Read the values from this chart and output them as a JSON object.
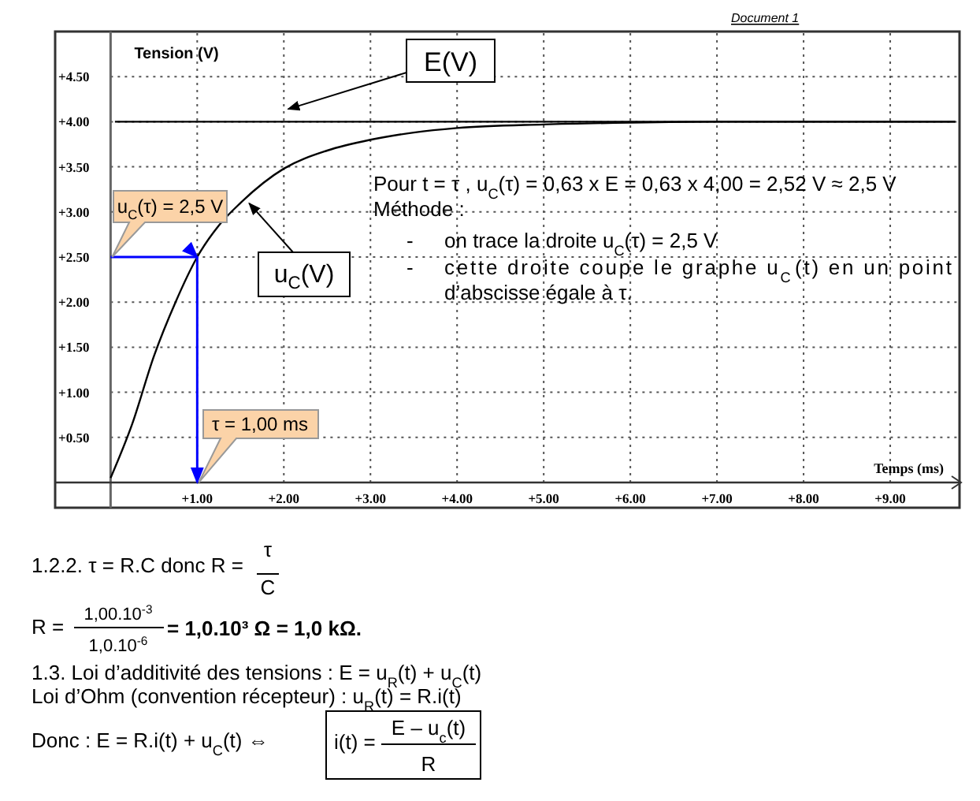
{
  "chart_data": {
    "type": "line",
    "xlabel": "Temps (ms)",
    "ylabel": "Tension (V)",
    "xlim": [
      -0.64,
      9.8
    ],
    "ylim": [
      0,
      5
    ],
    "xticks": [
      {
        "value": 1,
        "label": "+1.00"
      },
      {
        "value": 2,
        "label": "+2.00"
      },
      {
        "value": 3,
        "label": "+3.00"
      },
      {
        "value": 4,
        "label": "+4.00"
      },
      {
        "value": 5,
        "label": "+5.00"
      },
      {
        "value": 6,
        "label": "+6.00"
      },
      {
        "value": 7,
        "label": "+7.00"
      },
      {
        "value": 8,
        "label": "+8.00"
      },
      {
        "value": 9,
        "label": "+9.00"
      }
    ],
    "yticks": [
      {
        "value": 0.5,
        "label": "+0.50"
      },
      {
        "value": 1,
        "label": "+1.00"
      },
      {
        "value": 1.5,
        "label": "+1.50"
      },
      {
        "value": 2,
        "label": "+2.00"
      },
      {
        "value": 2.5,
        "label": "+2.50"
      },
      {
        "value": 3,
        "label": "+3.00"
      },
      {
        "value": 3.5,
        "label": "+3.50"
      },
      {
        "value": 4,
        "label": "+4.00"
      },
      {
        "value": 4.5,
        "label": "+4.50"
      }
    ],
    "grid": true,
    "legend": "top",
    "marker": "none",
    "line_style": "solid",
    "series": [
      {
        "name": "E(V)",
        "color": "#000000",
        "x": [
          0.05,
          1,
          2,
          3,
          4,
          5,
          6,
          7,
          8,
          9,
          9.75
        ],
        "values": [
          4.0,
          4.0,
          4.0,
          4.0,
          4.0,
          4.0,
          4.0,
          4.0,
          4.0,
          4.0,
          4.0
        ]
      },
      {
        "name": "u$_{C}$(V)",
        "color": "#000000",
        "x": [
          0,
          0.25,
          0.5,
          0.75,
          1,
          1.25,
          1.5,
          2,
          2.5,
          3,
          3.5,
          4,
          5,
          6,
          7,
          8,
          9,
          9.75
        ],
        "values": [
          0.05,
          0.65,
          1.4,
          2.0,
          2.5,
          2.85,
          3.1,
          3.48,
          3.68,
          3.8,
          3.88,
          3.93,
          3.97,
          3.99,
          4.0,
          4.0,
          4.0,
          4.0
        ]
      },
      {
        "color": "#0000ff",
        "x": [
          0,
          1,
          1
        ],
        "values": [
          2.5,
          2.5,
          0
        ]
      }
    ],
    "annotations": [
      {
        "text": "u$_{C}$(τ) = 2,5 V",
        "x": 0,
        "y": 2.5
      },
      {
        "text": "τ = 1,00 ms",
        "x": 1,
        "y": 0
      },
      "Pour t = τ  , u$_{C}$(τ) = 0,63 x E = 0,63 x 4,00 = 2,52 V ≈ 2,5 V",
      "Méthode :",
      "-",
      "on trace la droite u$_{C}$(τ) = 2,5 V",
      "-",
      "cette droite coupe le graphe u$_{C}$(t) en un point",
      "d’abscisse égale à τ.",
      "Document 1",
      "1.2.2. τ = R.C  donc  R =",
      "τ",
      "C",
      "R =",
      "1,00.10$^{-3}$",
      "1,0.10$^{-6}$",
      "= 1,0.10³ Ω = 1,0 kΩ.",
      "1.3. Loi d’additivité des tensions : E = u$_{R}$(t) + u$_{C}$(t)",
      "Loi d’Ohm (convention récepteur) : u$_{R}$(t) = R.i(t)",
      "Donc : E = R.i(t)  + u$_{C}$(t)    ⇔",
      "i(t) =",
      "E – u$_{c}$(t)",
      "R"
    ]
  }
}
